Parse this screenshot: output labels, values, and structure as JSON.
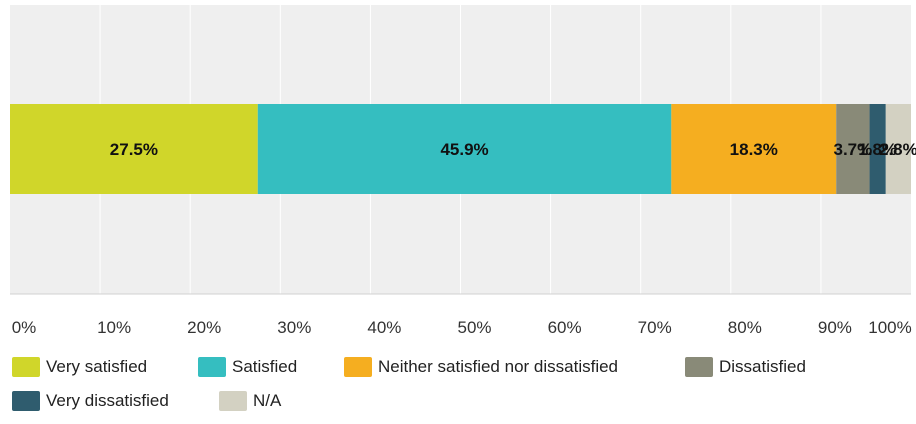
{
  "chart_data": {
    "type": "bar",
    "orientation": "horizontal",
    "stacked": true,
    "xlim": [
      0,
      100
    ],
    "x_ticks": [
      "0%",
      "10%",
      "20%",
      "30%",
      "40%",
      "50%",
      "60%",
      "70%",
      "80%",
      "90%",
      "100%"
    ],
    "grid": true,
    "legend_position": "bottom",
    "series": [
      {
        "name": "Very satisfied",
        "value": 27.5,
        "label": "27.5%",
        "color": "#d0d62a"
      },
      {
        "name": "Satisfied",
        "value": 45.9,
        "label": "45.9%",
        "color": "#35bec0"
      },
      {
        "name": "Neither satisfied nor dissatisfied",
        "value": 18.3,
        "label": "18.3%",
        "color": "#f5ae20"
      },
      {
        "name": "Dissatisfied",
        "value": 3.7,
        "label": "3.7%",
        "color": "#898a78"
      },
      {
        "name": "Very dissatisfied",
        "value": 1.8,
        "label": "1.8%",
        "color": "#2f5c6e"
      },
      {
        "name": "N/A",
        "value": 2.8,
        "label": "2.8%",
        "color": "#d3d1c2"
      }
    ]
  }
}
